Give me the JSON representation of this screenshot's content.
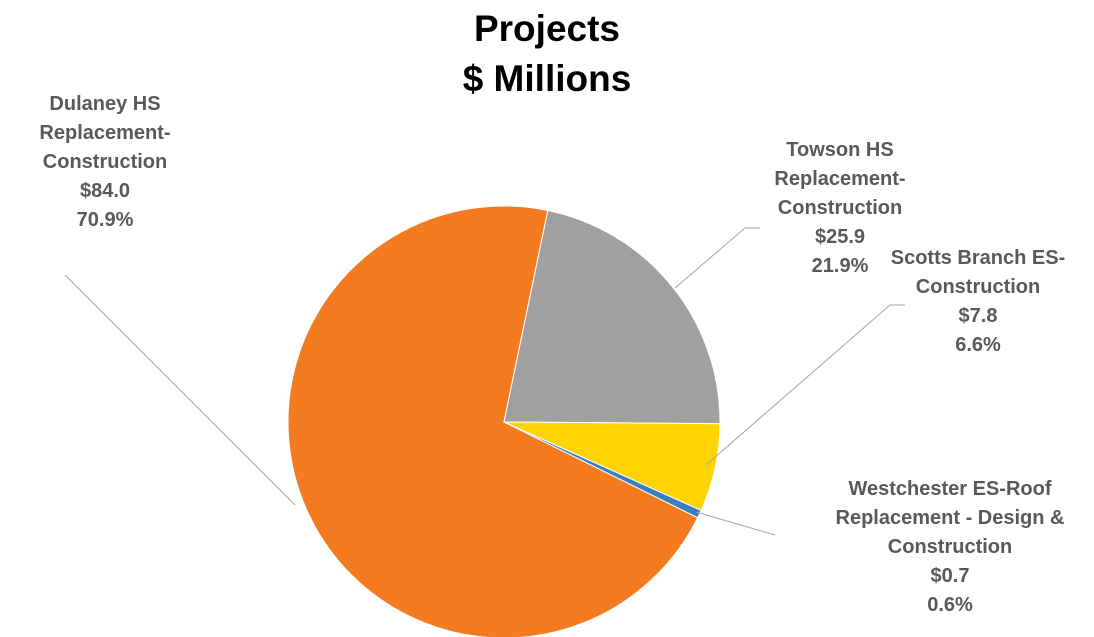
{
  "chart_data": {
    "type": "pie",
    "title": "Projects",
    "subtitle": "$ Millions",
    "categories": [
      "Dulaney HS Replacement-Construction",
      "Towson HS Replacement-Construction",
      "Scotts Branch ES-Construction",
      "Westchester ES-Roof Replacement - Design & Construction"
    ],
    "values": [
      84.0,
      25.9,
      7.8,
      0.7
    ],
    "value_labels": [
      "$84.0",
      "$25.9",
      "$7.8",
      "$0.7"
    ],
    "percent_labels": [
      "70.9%",
      "21.9%",
      "6.6%",
      "0.6%"
    ],
    "colors": [
      "#f47b20",
      "#a0a0a0",
      "#ffd400",
      "#3b7ec2"
    ]
  }
}
